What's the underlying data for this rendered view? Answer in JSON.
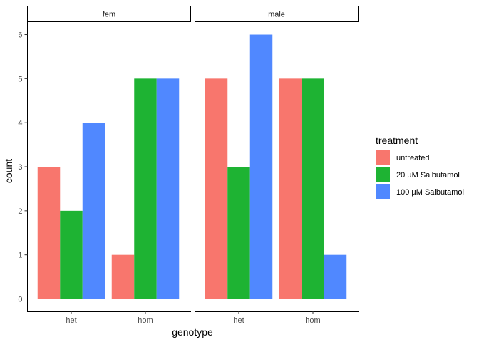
{
  "chart_data": {
    "type": "bar",
    "facets": [
      "fem",
      "male"
    ],
    "categories": [
      "het",
      "hom"
    ],
    "xlabel": "genotype",
    "ylabel": "count",
    "ylim": [
      0,
      6
    ],
    "yticks": [
      0,
      1,
      2,
      3,
      4,
      5,
      6
    ],
    "grid": false,
    "legend_title": "treatment",
    "legend_position": "right",
    "series": [
      {
        "name": "untreated",
        "color": "#F8766D",
        "values": {
          "fem": [
            3,
            1
          ],
          "male": [
            5,
            5
          ]
        }
      },
      {
        "name": "20 μM Salbutamol",
        "color": "#1EB333",
        "values": {
          "fem": [
            2,
            5
          ],
          "male": [
            3,
            5
          ]
        }
      },
      {
        "name": "100 μM Salbutamol",
        "color": "#5088FF",
        "values": {
          "fem": [
            4,
            5
          ],
          "male": [
            6,
            1
          ]
        }
      }
    ]
  }
}
